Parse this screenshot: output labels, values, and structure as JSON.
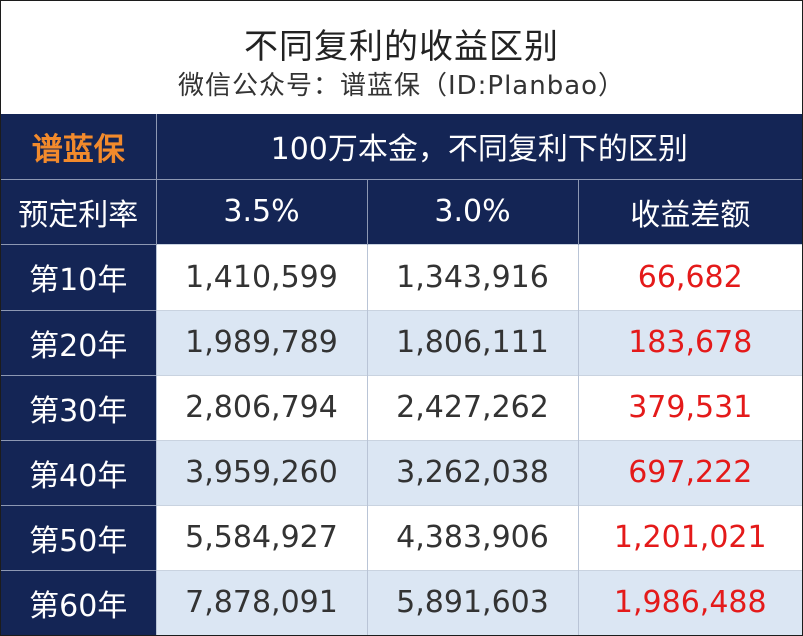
{
  "title": "不同复利的收益区别",
  "subtitle": "微信公众号：谱蓝保（ID:Planbao）",
  "header": {
    "brand": "谱蓝保",
    "caption": "100万本金，不同复利下的区别",
    "rate_label": "预定利率",
    "col_35": "3.5%",
    "col_30": "3.0%",
    "col_diff": "收益差额"
  },
  "colors": {
    "header_bg": "#142555",
    "brand": "#f28a2c",
    "alt_row": "#dbe6f3",
    "diff_text": "#e41a1a"
  },
  "rows": [
    {
      "year": "第10年",
      "r35": "1,410,599",
      "r30": "1,343,916",
      "diff": "66,682"
    },
    {
      "year": "第20年",
      "r35": "1,989,789",
      "r30": "1,806,111",
      "diff": "183,678"
    },
    {
      "year": "第30年",
      "r35": "2,806,794",
      "r30": "2,427,262",
      "diff": "379,531"
    },
    {
      "year": "第40年",
      "r35": "3,959,260",
      "r30": "3,262,038",
      "diff": "697,222"
    },
    {
      "year": "第50年",
      "r35": "5,584,927",
      "r30": "4,383,906",
      "diff": "1,201,021"
    },
    {
      "year": "第60年",
      "r35": "7,878,091",
      "r30": "5,891,603",
      "diff": "1,986,488"
    }
  ]
}
